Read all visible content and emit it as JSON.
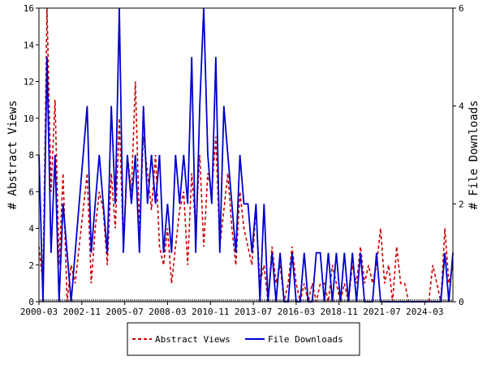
{
  "chart_data": {
    "type": "line",
    "title": "",
    "ylabel_left": "# Abstract Views",
    "ylabel_right": "# File Downloads",
    "ylim_left": [
      0,
      16
    ],
    "ylim_right": [
      0,
      6
    ],
    "yticks_left": [
      0,
      2,
      4,
      6,
      8,
      10,
      12,
      14,
      16
    ],
    "yticks_right": [
      0,
      2,
      4,
      6
    ],
    "xlim": [
      "2000-03",
      "2025-12"
    ],
    "xticks": [
      "2000-03",
      "2002-11",
      "2005-07",
      "2008-03",
      "2010-11",
      "2013-07",
      "2016-03",
      "2018-11",
      "2021-07",
      "2024-03"
    ],
    "grid": false,
    "legend_position": "bottom",
    "colors": {
      "abstract_views": "#cc0000",
      "file_downloads": "#0000cc"
    },
    "series": [
      {
        "name": "Abstract Views",
        "axis": "left",
        "style": "dashed",
        "x": [
          "2000-03",
          "2000-06",
          "2000-09",
          "2000-12",
          "2001-03",
          "2001-06",
          "2001-09",
          "2001-12",
          "2002-03",
          "2002-06",
          "2002-09",
          "2002-12",
          "2003-03",
          "2003-06",
          "2003-09",
          "2003-12",
          "2004-03",
          "2004-06",
          "2004-09",
          "2004-12",
          "2005-03",
          "2005-06",
          "2005-09",
          "2005-12",
          "2006-03",
          "2006-06",
          "2006-09",
          "2006-12",
          "2007-03",
          "2007-06",
          "2007-09",
          "2007-12",
          "2008-03",
          "2008-06",
          "2008-09",
          "2008-12",
          "2009-03",
          "2009-06",
          "2009-09",
          "2009-12",
          "2010-03",
          "2010-06",
          "2010-09",
          "2010-12",
          "2011-03",
          "2011-06",
          "2011-09",
          "2011-12",
          "2012-03",
          "2012-06",
          "2012-09",
          "2012-12",
          "2013-03",
          "2013-06",
          "2013-09",
          "2013-12",
          "2014-03",
          "2014-06",
          "2014-09",
          "2014-12",
          "2015-03",
          "2015-06",
          "2015-09",
          "2015-12",
          "2016-03",
          "2016-06",
          "2016-09",
          "2016-12",
          "2017-03",
          "2017-06",
          "2017-09",
          "2017-12",
          "2018-03",
          "2018-06",
          "2018-09",
          "2018-12",
          "2019-03",
          "2019-06",
          "2019-09",
          "2019-12",
          "2020-03",
          "2020-06",
          "2020-09",
          "2020-12",
          "2021-03",
          "2021-06",
          "2021-09",
          "2021-12",
          "2022-03",
          "2022-06",
          "2022-09",
          "2022-12",
          "2023-03",
          "2023-06",
          "2023-09",
          "2023-12",
          "2024-03",
          "2024-06",
          "2024-09",
          "2024-12",
          "2025-03",
          "2025-06",
          "2025-09",
          "2025-12"
        ],
        "values": [
          3,
          1,
          16,
          6,
          11,
          2,
          7,
          0,
          2,
          1,
          3,
          5,
          7,
          1,
          4,
          6,
          5,
          2,
          7,
          4,
          10,
          3,
          8,
          6,
          12,
          4,
          9,
          7,
          5,
          8,
          3,
          2,
          4,
          1,
          3,
          5,
          6,
          2,
          7,
          4,
          8,
          3,
          7,
          6,
          9,
          3,
          5,
          7,
          4,
          2,
          6,
          4,
          3,
          2,
          5,
          1,
          2,
          0,
          3,
          1,
          2,
          0,
          1,
          3,
          1,
          0,
          1,
          0,
          1,
          0,
          1,
          1,
          0,
          2,
          1,
          0,
          1,
          0,
          2,
          1,
          3,
          1,
          2,
          1,
          2,
          4,
          1,
          2,
          0,
          3,
          1,
          1,
          0,
          0,
          0,
          0,
          0,
          0,
          2,
          1,
          0,
          4,
          1,
          2
        ]
      },
      {
        "name": "File Downloads",
        "axis": "right",
        "style": "solid",
        "x": [
          "2000-03",
          "2000-06",
          "2000-09",
          "2000-12",
          "2001-03",
          "2001-06",
          "2001-09",
          "2001-12",
          "2002-03",
          "2002-06",
          "2002-09",
          "2002-12",
          "2003-03",
          "2003-06",
          "2003-09",
          "2003-12",
          "2004-03",
          "2004-06",
          "2004-09",
          "2004-12",
          "2005-03",
          "2005-06",
          "2005-09",
          "2005-12",
          "2006-03",
          "2006-06",
          "2006-09",
          "2006-12",
          "2007-03",
          "2007-06",
          "2007-09",
          "2007-12",
          "2008-03",
          "2008-06",
          "2008-09",
          "2008-12",
          "2009-03",
          "2009-06",
          "2009-09",
          "2009-12",
          "2010-03",
          "2010-06",
          "2010-09",
          "2010-12",
          "2011-03",
          "2011-06",
          "2011-09",
          "2011-12",
          "2012-03",
          "2012-06",
          "2012-09",
          "2012-12",
          "2013-03",
          "2013-06",
          "2013-09",
          "2013-12",
          "2014-03",
          "2014-06",
          "2014-09",
          "2014-12",
          "2015-03",
          "2015-06",
          "2015-09",
          "2015-12",
          "2016-03",
          "2016-06",
          "2016-09",
          "2016-12",
          "2017-03",
          "2017-06",
          "2017-09",
          "2017-12",
          "2018-03",
          "2018-06",
          "2018-09",
          "2018-12",
          "2019-03",
          "2019-06",
          "2019-09",
          "2019-12",
          "2020-03",
          "2020-06",
          "2020-09",
          "2020-12",
          "2021-03",
          "2021-06",
          "2021-09",
          "2021-12",
          "2022-03",
          "2022-06",
          "2022-09",
          "2022-12",
          "2023-03",
          "2023-06",
          "2023-09",
          "2023-12",
          "2024-03",
          "2024-06",
          "2024-09",
          "2024-12",
          "2025-03",
          "2025-06",
          "2025-09",
          "2025-12"
        ],
        "values": [
          3,
          0,
          5,
          1,
          3,
          0,
          2,
          1,
          0,
          1,
          2,
          3,
          4,
          1,
          2,
          3,
          2,
          1,
          4,
          2,
          6,
          1,
          3,
          2,
          3,
          1,
          4,
          2,
          3,
          2,
          3,
          1,
          2,
          1,
          3,
          2,
          3,
          2,
          5,
          1,
          4,
          6,
          3,
          2,
          5,
          1,
          4,
          3,
          2,
          1,
          3,
          2,
          2,
          1,
          2,
          0,
          2,
          0,
          1,
          0,
          1,
          0,
          0,
          1,
          0,
          0,
          1,
          0,
          0,
          1,
          1,
          0,
          1,
          0,
          1,
          0,
          1,
          0,
          1,
          0,
          1,
          0,
          0,
          0,
          1,
          0,
          0,
          0,
          0,
          0,
          0,
          0,
          0,
          0,
          0,
          0,
          0,
          0,
          0,
          0,
          0,
          1,
          0,
          1
        ]
      }
    ]
  }
}
